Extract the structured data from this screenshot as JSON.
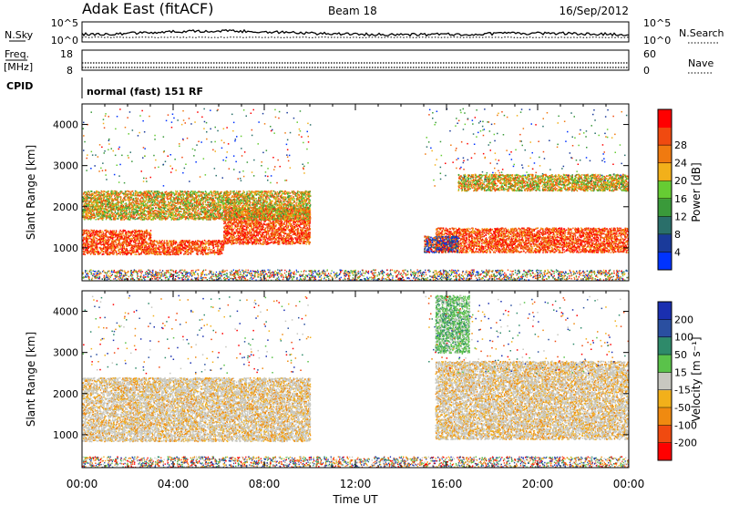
{
  "header": {
    "station": "Adak East (fitACF)",
    "beam": "Beam 18",
    "date": "16/Sep/2012"
  },
  "nsky_panel": {
    "left_label": "N.Sky",
    "right_label": "N.Search",
    "y_ticks": [
      "10^5",
      "10^0"
    ],
    "right_ticks": [
      "10^5",
      "10^0"
    ]
  },
  "freq_panel": {
    "left_label": "Freq.",
    "left_unit": "[MHz]",
    "left_ticks": [
      "18",
      "8"
    ],
    "right_label": "Nave",
    "right_ticks": [
      "60",
      "0"
    ]
  },
  "cpid": {
    "label": "CPID",
    "value": "normal (fast) 151 RF"
  },
  "x_axis": {
    "label": "Time UT",
    "ticks": [
      "00:00",
      "04:00",
      "08:00",
      "12:00",
      "16:00",
      "20:00",
      "00:00"
    ],
    "range_hours": [
      0,
      24
    ]
  },
  "y_axis": {
    "label": "Slant Range [km]",
    "ticks": [
      "1000",
      "2000",
      "3000",
      "4000"
    ],
    "range_km": [
      200,
      4500
    ]
  },
  "power_colorbar": {
    "label": "Power [dB]",
    "ticks": [
      "4",
      "8",
      "12",
      "16",
      "20",
      "24",
      "28"
    ],
    "colors": [
      "#0033ff",
      "#1a3a9a",
      "#2a6f6a",
      "#3a9a3a",
      "#66cc33",
      "#f2b01a",
      "#f07a10",
      "#f04a10",
      "#ff0000"
    ]
  },
  "velocity_colorbar": {
    "label": "Velocity [m s⁻¹]",
    "ticks": [
      "200",
      "100",
      "50",
      "15",
      "-15",
      "-50",
      "-100",
      "-200"
    ],
    "colors": [
      "#1a2fb0",
      "#2a4fa0",
      "#2e8a6a",
      "#5ac24a",
      "#c8c8c0",
      "#f2b01a",
      "#f08a10",
      "#f04a10",
      "#ff0000"
    ]
  },
  "chart_data": {
    "type": "heatmap",
    "panels": [
      "power",
      "velocity"
    ],
    "x_unit": "hours UT",
    "y_unit": "km",
    "xlim": [
      0,
      24
    ],
    "ylim": [
      200,
      4500
    ],
    "power_regions": [
      {
        "t0": 0.0,
        "t1": 3.0,
        "r0": 850,
        "r1": 1450,
        "level": "high"
      },
      {
        "t0": 3.0,
        "t1": 6.2,
        "r0": 850,
        "r1": 1200,
        "level": "high"
      },
      {
        "t0": 6.2,
        "t1": 10.0,
        "r0": 1100,
        "r1": 2000,
        "level": "high"
      },
      {
        "t0": 0.0,
        "t1": 10.0,
        "r0": 1700,
        "r1": 2400,
        "level": "mid"
      },
      {
        "t0": 15.5,
        "t1": 24.0,
        "r0": 900,
        "r1": 1500,
        "level": "high"
      },
      {
        "t0": 16.5,
        "t1": 24.0,
        "r0": 2400,
        "r1": 2800,
        "level": "mid"
      },
      {
        "t0": 15.0,
        "t1": 16.5,
        "r0": 900,
        "r1": 1300,
        "level": "low"
      }
    ],
    "velocity_regions": [
      {
        "t0": 0.0,
        "t1": 10.0,
        "r0": 850,
        "r1": 2400,
        "value": "near-zero"
      },
      {
        "t0": 15.5,
        "t1": 24.0,
        "r0": 900,
        "r1": 2800,
        "value": "near-zero"
      },
      {
        "t0": 15.5,
        "t1": 17.0,
        "r0": 3000,
        "r1": 4400,
        "value": "positive"
      }
    ]
  }
}
